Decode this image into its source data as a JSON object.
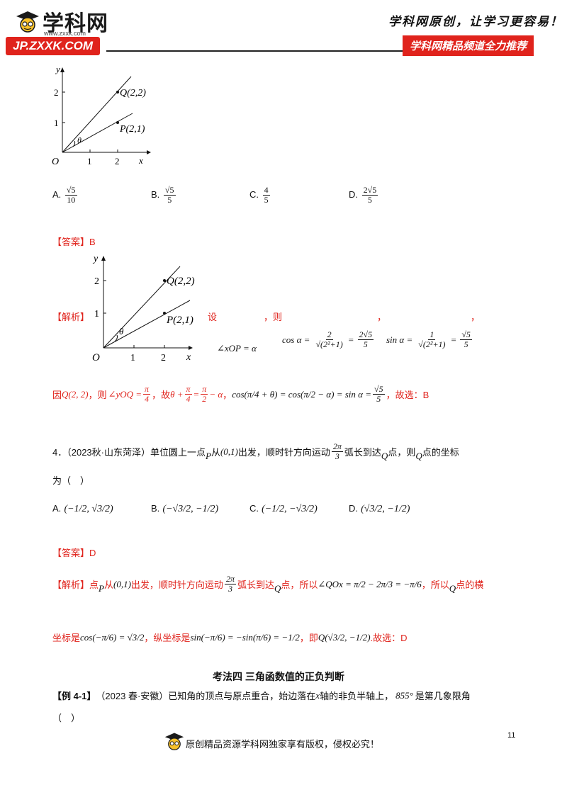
{
  "header": {
    "logo_name": "学科网",
    "logo_url": "www.zxxk.com",
    "site_badge": "JP.ZXXK.COM",
    "slogan": "学科网原创，让学习更容易！",
    "channel": "学科网精品频道全力推荐"
  },
  "figure1": {
    "y_label": "y",
    "x_label": "x",
    "origin": "O",
    "ticks_x": [
      "1",
      "2"
    ],
    "ticks_y": [
      "1",
      "2"
    ],
    "point_q": "Q(2,2)",
    "point_p": "P(2,1)",
    "angle": "θ"
  },
  "q3": {
    "options": [
      {
        "letter": "A.",
        "num": "√5",
        "den": "10"
      },
      {
        "letter": "B.",
        "num": "√5",
        "den": "5"
      },
      {
        "letter": "C.",
        "num": "4",
        "den": "5"
      },
      {
        "letter": "D.",
        "num": "2√5",
        "den": "5"
      }
    ],
    "answer_tag": "【答案】",
    "answer": "B",
    "analysis_tag": "【解析】",
    "analysis_she": "设",
    "analysis_ze": "，则",
    "comma1": "，",
    "comma2": "，",
    "angle_def": "∠xOP = α",
    "cos_label": "cos α =",
    "cos_num": "2",
    "cos_den": "√(2²+1)",
    "cos_eq": "=",
    "cos_num2": "2√5",
    "cos_den2": "5",
    "sin_label": "sin α =",
    "sin_num": "1",
    "sin_den": "√(2²+1)",
    "sin_eq": "=",
    "sin_num2": "√5",
    "sin_den2": "5",
    "line2_a": "因",
    "line2_q": "Q(2, 2)",
    "line2_b": "，则",
    "line2_angle": "∠yOQ =",
    "line2_pi": "π",
    "line2_4": "4",
    "line2_c": "，故",
    "line2_theta": "θ +",
    "line2_eqpi": "= ",
    "line2_pi2": "π",
    "line2_2": "2",
    "line2_minus": "− α",
    "line2_comma": "，",
    "line2_cos": "cos(π/4 + θ) = cos(π/2 − α) = sin α =",
    "line2_result_num": "√5",
    "line2_result_den": "5",
    "line2_end": "，故选：B"
  },
  "figure2": {
    "y_label": "y",
    "x_label": "x",
    "origin": "O",
    "ticks_x": [
      "1",
      "2"
    ],
    "ticks_y": [
      "1",
      "2"
    ],
    "point_q": "Q(2,2)",
    "point_p": "P(2,1)",
    "angle": "θ"
  },
  "q4": {
    "stem1": "4．（2023秋·山东菏泽）单位圆上一点",
    "p": "P",
    "stem2": "从",
    "start": "(0,1)",
    "stem3": "出发，顺时针方向运动",
    "arc_num": "2π",
    "arc_den": "3",
    "stem4": "弧长到达",
    "q": "Q",
    "stem5": "点，则",
    "stem6": "点的坐标",
    "stem7": "为（　）",
    "options": [
      {
        "letter": "A.",
        "text": "(−1/2, √3/2)"
      },
      {
        "letter": "B.",
        "text": "(−√3/2, −1/2)"
      },
      {
        "letter": "C.",
        "text": "(−1/2, −√3/2)"
      },
      {
        "letter": "D.",
        "text": "(√3/2, −1/2)"
      }
    ],
    "answer_tag": "【答案】",
    "answer": "D",
    "analysis_tag": "【解析】",
    "a1": "点",
    "a2": "从",
    "a3": "出发，顺时针方向运动",
    "a4": "弧长到达",
    "a5": "点，所以",
    "a_angle": "∠QOx = π/2 − 2π/3 = −π/6",
    "a6": "，所以",
    "a7": "点的横",
    "b1": "坐标是",
    "b_cos": "cos(−π/6) = √3/2",
    "b2": "，纵坐标是",
    "b_sin": "sin(−π/6) = −sin(π/6) = −1/2",
    "b3": "，即",
    "b_q": "Q(√3/2, −1/2)",
    "b4": ".故选：D"
  },
  "section": {
    "heading": "考法四 三角函数值的正负判断",
    "example_tag": "【例 4-1】",
    "example_text": "（2023 春·安徽）已知角的顶点与原点重合，始边落在",
    "x": "x",
    "example_text2": "轴的非负半轴上，",
    "deg": "855°",
    "example_text3": "是第几象限角",
    "blank": "（　）"
  },
  "footer": {
    "copyright": "原创精品资源学科网独家享有版权，侵权必究！",
    "page": "11"
  }
}
